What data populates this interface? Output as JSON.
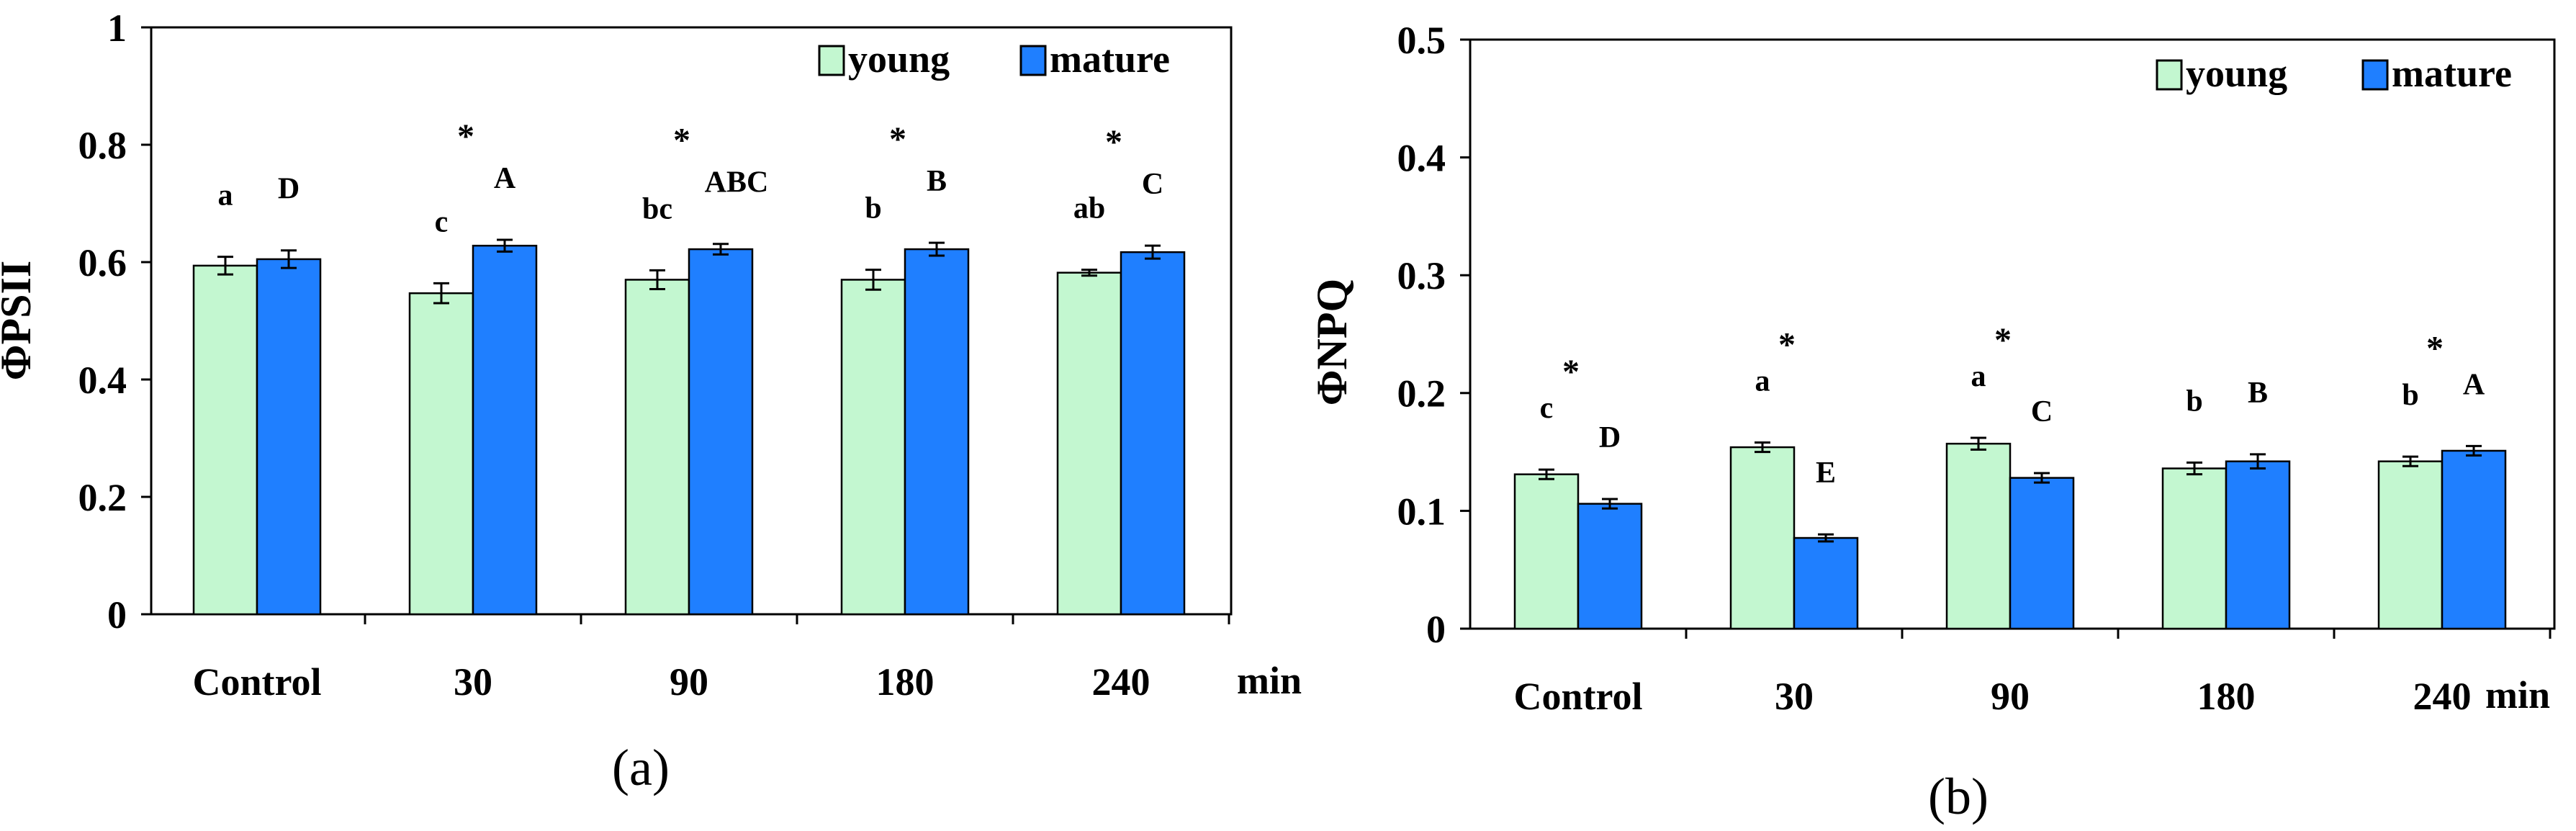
{
  "chart_data": [
    {
      "type": "bar",
      "panel_label": "(a)",
      "title": "",
      "ylabel": "ΦPSII",
      "xlabel": "min",
      "ylim": [
        0,
        1
      ],
      "yticks": [
        "0",
        "0.2",
        "0.4",
        "0.6",
        "0.8",
        "1"
      ],
      "categories": [
        "Control",
        "30",
        "90",
        "180",
        "240"
      ],
      "legend": {
        "placement": "top-right"
      },
      "colors": {
        "young": "#c3f7d0",
        "mature": "#1f7fff"
      },
      "series": [
        {
          "name": "young",
          "values": [
            0.594,
            0.547,
            0.57,
            0.57,
            0.582
          ],
          "errors": [
            0.015,
            0.017,
            0.016,
            0.017,
            0.005
          ],
          "letters": [
            "a",
            "c",
            "bc",
            "b",
            "ab"
          ]
        },
        {
          "name": "mature",
          "values": [
            0.605,
            0.628,
            0.622,
            0.622,
            0.617
          ],
          "errors": [
            0.015,
            0.01,
            0.009,
            0.011,
            0.011
          ],
          "letters": [
            "D",
            "A",
            "ABC",
            "B",
            "C"
          ]
        }
      ],
      "stars": [
        "",
        "*",
        "*",
        "*",
        "*"
      ]
    },
    {
      "type": "bar",
      "panel_label": "(b)",
      "title": "",
      "ylabel": "ΦNPQ",
      "xlabel": "min",
      "ylim": [
        0,
        0.5
      ],
      "yticks": [
        "0",
        "0.1",
        "0.2",
        "0.3",
        "0.4",
        "0.5"
      ],
      "categories": [
        "Control",
        "30",
        "90",
        "180",
        "240"
      ],
      "legend": {
        "placement": "top-right"
      },
      "colors": {
        "young": "#c3f7d0",
        "mature": "#1f7fff"
      },
      "series": [
        {
          "name": "young",
          "values": [
            0.131,
            0.154,
            0.157,
            0.136,
            0.142
          ],
          "errors": [
            0.004,
            0.004,
            0.005,
            0.005,
            0.004
          ],
          "letters": [
            "c",
            "a",
            "a",
            "b",
            "b"
          ]
        },
        {
          "name": "mature",
          "values": [
            0.106,
            0.077,
            0.128,
            0.142,
            0.151
          ],
          "errors": [
            0.004,
            0.003,
            0.004,
            0.006,
            0.004
          ],
          "letters": [
            "D",
            "E",
            "C",
            "B",
            "A"
          ]
        }
      ],
      "stars": [
        "*",
        "*",
        "*",
        "",
        "*"
      ]
    }
  ]
}
